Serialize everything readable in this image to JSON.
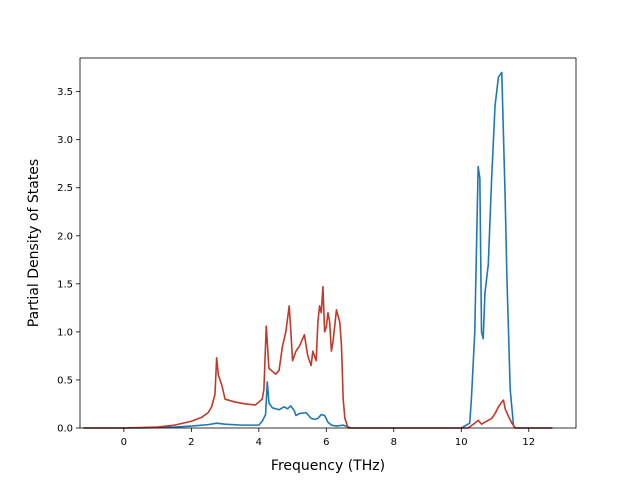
{
  "chart_data": {
    "type": "line",
    "title": "",
    "xlabel": "Frequency (THz)",
    "ylabel": "Partial Density of States",
    "xlim": [
      -1.3,
      13.4
    ],
    "ylim": [
      0,
      3.85
    ],
    "xticks": [
      0,
      2,
      4,
      6,
      8,
      10,
      12
    ],
    "yticks": [
      0.0,
      0.5,
      1.0,
      1.5,
      2.0,
      2.5,
      3.0,
      3.5
    ],
    "xtick_labels": [
      "0",
      "2",
      "4",
      "6",
      "8",
      "10",
      "12"
    ],
    "ytick_labels": [
      "0.0",
      "0.5",
      "1.0",
      "1.5",
      "2.0",
      "2.5",
      "3.0",
      "3.5"
    ],
    "grid": false,
    "legend": "none",
    "series": [
      {
        "color": "#1f77b4",
        "x": [
          -1.2,
          0,
          0.5,
          1.0,
          1.5,
          2.0,
          2.5,
          2.75,
          3.0,
          3.5,
          4.0,
          4.1,
          4.2,
          4.25,
          4.3,
          4.4,
          4.6,
          4.75,
          4.85,
          4.95,
          5.05,
          5.1,
          5.2,
          5.4,
          5.55,
          5.65,
          5.75,
          5.85,
          5.95,
          6.05,
          6.15,
          6.3,
          6.5,
          6.65,
          6.75,
          7.0,
          8.0,
          9.0,
          10.0,
          10.25,
          10.3,
          10.4,
          10.5,
          10.55,
          10.6,
          10.65,
          10.7,
          10.8,
          10.9,
          11.0,
          11.1,
          11.2,
          11.3,
          11.35,
          11.45,
          11.55,
          11.6,
          12.0,
          12.7
        ],
        "y": [
          0.0,
          0.0,
          0.0,
          0.005,
          0.01,
          0.02,
          0.035,
          0.05,
          0.04,
          0.03,
          0.03,
          0.07,
          0.14,
          0.48,
          0.26,
          0.21,
          0.19,
          0.22,
          0.2,
          0.23,
          0.18,
          0.13,
          0.15,
          0.16,
          0.1,
          0.09,
          0.1,
          0.14,
          0.13,
          0.06,
          0.03,
          0.02,
          0.03,
          0.01,
          0.0,
          0.0,
          0.0,
          0.0,
          0.0,
          0.05,
          0.3,
          1.0,
          2.72,
          2.6,
          1.0,
          0.93,
          1.4,
          1.7,
          2.6,
          3.35,
          3.65,
          3.7,
          2.4,
          1.6,
          0.4,
          0.02,
          0.0,
          0.0,
          0.0
        ]
      },
      {
        "color": "#c0392b",
        "x": [
          -1.2,
          0,
          0.5,
          1.0,
          1.5,
          2.0,
          2.3,
          2.5,
          2.6,
          2.7,
          2.75,
          2.8,
          2.9,
          3.0,
          3.3,
          3.6,
          3.9,
          4.0,
          4.1,
          4.15,
          4.22,
          4.3,
          4.5,
          4.6,
          4.7,
          4.8,
          4.9,
          4.95,
          5.0,
          5.1,
          5.2,
          5.35,
          5.45,
          5.55,
          5.6,
          5.7,
          5.75,
          5.8,
          5.85,
          5.9,
          5.95,
          6.0,
          6.05,
          6.1,
          6.15,
          6.2,
          6.3,
          6.4,
          6.45,
          6.5,
          6.55,
          6.6,
          6.62,
          6.65,
          6.75,
          7.0,
          8.0,
          9.0,
          10.0,
          10.2,
          10.4,
          10.5,
          10.6,
          10.7,
          10.9,
          11.0,
          11.1,
          11.2,
          11.25,
          11.3,
          11.4,
          11.5,
          11.6,
          12.0,
          12.7
        ],
        "y": [
          0.0,
          0.0,
          0.005,
          0.01,
          0.03,
          0.07,
          0.11,
          0.16,
          0.22,
          0.35,
          0.73,
          0.55,
          0.45,
          0.3,
          0.27,
          0.25,
          0.24,
          0.27,
          0.3,
          0.4,
          1.06,
          0.62,
          0.56,
          0.6,
          0.85,
          1.0,
          1.27,
          1.0,
          0.7,
          0.8,
          0.85,
          0.97,
          0.75,
          0.65,
          0.8,
          0.7,
          1.1,
          1.27,
          1.2,
          1.47,
          1.0,
          1.05,
          1.2,
          1.1,
          0.8,
          0.9,
          1.23,
          1.1,
          0.85,
          0.3,
          0.1,
          0.05,
          0.02,
          0.0,
          0.0,
          0.0,
          0.0,
          0.0,
          0.0,
          0.0,
          0.05,
          0.08,
          0.04,
          0.06,
          0.1,
          0.15,
          0.22,
          0.27,
          0.29,
          0.2,
          0.12,
          0.05,
          0.0,
          0.0,
          0.0
        ]
      }
    ]
  }
}
